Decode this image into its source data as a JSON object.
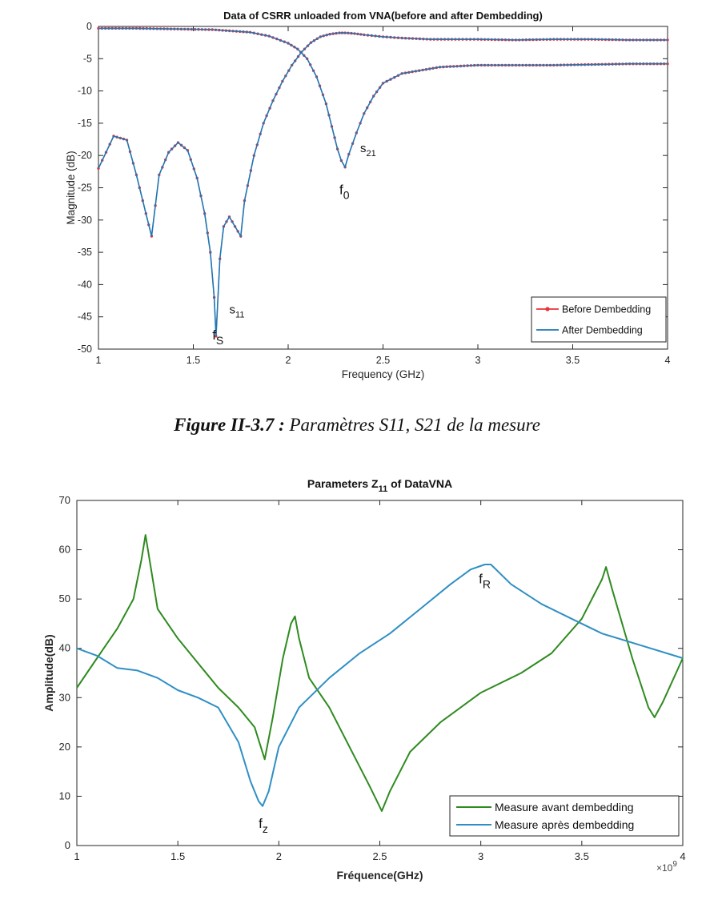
{
  "caption": {
    "label": "Figure II-3.7 :",
    "text": " Paramètres S11, S21 de la mesure"
  },
  "colors": {
    "s_before": "#e8323a",
    "s_after": "#1f77b4",
    "z_before": "#2e8b1f",
    "z_after": "#2f8fc4"
  },
  "chart_data": [
    {
      "type": "line",
      "title": "Data of CSRR unloaded from VNA(before and after Dembedding)",
      "xlabel": "Frequency (GHz)",
      "ylabel": "Magnitude (dB)",
      "xlim": [
        1,
        4
      ],
      "ylim": [
        -50,
        0
      ],
      "xticks": [
        1,
        1.5,
        2,
        2.5,
        3,
        3.5,
        4
      ],
      "xtick_labels": [
        "1",
        "1.5",
        "2",
        "2.5",
        "3",
        "3.5",
        "4"
      ],
      "yticks": [
        0,
        -5,
        -10,
        -15,
        -20,
        -25,
        -30,
        -35,
        -40,
        -45,
        -50
      ],
      "ytick_labels": [
        "0",
        "-5",
        "-10",
        "-15",
        "-20",
        "-25",
        "-30",
        "-35",
        "-40",
        "-45",
        "-50"
      ],
      "legend_position": "bottom-right",
      "series": [
        {
          "name": "Before Dembedding",
          "marker": "dot"
        },
        {
          "name": "After Dembedding"
        }
      ],
      "curves": {
        "S11": {
          "x": [
            1,
            1.08,
            1.15,
            1.2,
            1.25,
            1.28,
            1.32,
            1.37,
            1.42,
            1.47,
            1.52,
            1.56,
            1.59,
            1.61,
            1.62,
            1.64,
            1.66,
            1.69,
            1.72,
            1.75,
            1.77,
            1.82,
            1.87,
            1.92,
            1.97,
            2.02,
            2.07,
            2.12,
            2.17,
            2.22,
            2.27,
            2.3,
            2.35,
            2.4,
            2.5,
            2.6,
            2.75,
            2.9,
            3,
            3.2,
            3.4,
            3.6,
            3.8,
            4
          ],
          "y": [
            -22,
            -17,
            -17.6,
            -23,
            -29,
            -32.5,
            -23,
            -19.5,
            -18,
            -19.2,
            -23.5,
            -29,
            -35,
            -42,
            -48,
            -36,
            -31,
            -29.5,
            -31,
            -32.5,
            -27,
            -20,
            -15,
            -11.5,
            -8.5,
            -6,
            -4,
            -2.5,
            -1.6,
            -1.2,
            -1,
            -1,
            -1.1,
            -1.3,
            -1.6,
            -1.8,
            -2,
            -2,
            -2,
            -2.1,
            -2,
            -2,
            -2.1,
            -2.1
          ]
        },
        "S21": {
          "x": [
            1,
            1.2,
            1.4,
            1.6,
            1.8,
            1.9,
            2,
            2.05,
            2.1,
            2.15,
            2.2,
            2.23,
            2.26,
            2.28,
            2.3,
            2.32,
            2.36,
            2.4,
            2.45,
            2.5,
            2.6,
            2.8,
            3,
            3.2,
            3.4,
            3.6,
            3.8,
            4
          ],
          "y": [
            -0.3,
            -0.3,
            -0.4,
            -0.5,
            -0.9,
            -1.5,
            -2.6,
            -3.5,
            -5,
            -7.8,
            -12,
            -15.5,
            -19,
            -20.8,
            -21.8,
            -19.8,
            -16.5,
            -13.5,
            -10.8,
            -8.8,
            -7.3,
            -6.3,
            -6,
            -6,
            -6,
            -5.9,
            -5.8,
            -5.8
          ]
        }
      },
      "annotations": [
        {
          "text": "s",
          "sub": "21",
          "x": 2.38,
          "y": -19.5
        },
        {
          "text": "f",
          "sub": "0",
          "x": 2.27,
          "y": -26
        },
        {
          "text": "s",
          "sub": "11",
          "x": 1.69,
          "y": -44.5
        },
        {
          "text": "f",
          "sub": "S",
          "x": 1.6,
          "y": -48.5
        }
      ]
    },
    {
      "type": "line",
      "title": "Parameters Z",
      "title_sub": "11",
      "title_suffix": " of DataVNA",
      "xlabel": "Fréquence(GHz)",
      "ylabel": "Amplitude(dB)",
      "x_exponent_label": "×10",
      "x_exponent_power": "9",
      "xlim": [
        1,
        4
      ],
      "ylim": [
        0,
        70
      ],
      "xticks": [
        1,
        1.5,
        2,
        2.5,
        3,
        3.5,
        4
      ],
      "xtick_labels": [
        "1",
        "1.5",
        "2",
        "2.5",
        "3",
        "3.5",
        "4"
      ],
      "yticks": [
        0,
        10,
        20,
        30,
        40,
        50,
        60,
        70
      ],
      "ytick_labels": [
        "0",
        "10",
        "20",
        "30",
        "40",
        "50",
        "60",
        "70"
      ],
      "legend_position": "bottom-right",
      "series": [
        {
          "name": "Measure avant dembedding",
          "x": [
            1,
            1.1,
            1.2,
            1.28,
            1.32,
            1.34,
            1.36,
            1.4,
            1.5,
            1.6,
            1.7,
            1.8,
            1.88,
            1.93,
            1.97,
            2.02,
            2.06,
            2.08,
            2.1,
            2.15,
            2.25,
            2.35,
            2.45,
            2.51,
            2.55,
            2.65,
            2.8,
            3,
            3.2,
            3.35,
            3.5,
            3.6,
            3.62,
            3.65,
            3.75,
            3.83,
            3.86,
            3.9,
            4
          ],
          "y": [
            32,
            38,
            44,
            50,
            58,
            63,
            58,
            48,
            42,
            37,
            32,
            28,
            24,
            17.5,
            26,
            38,
            45,
            46.5,
            42,
            34,
            28,
            20,
            12,
            7,
            11,
            19,
            25,
            31,
            35,
            39,
            46,
            54,
            56.5,
            52,
            38,
            28,
            26,
            29,
            38
          ]
        },
        {
          "name": "Measure après dembedding",
          "x": [
            1,
            1.1,
            1.2,
            1.3,
            1.4,
            1.5,
            1.6,
            1.7,
            1.8,
            1.86,
            1.9,
            1.92,
            1.95,
            2,
            2.1,
            2.25,
            2.4,
            2.55,
            2.7,
            2.85,
            2.95,
            3.02,
            3.05,
            3.15,
            3.3,
            3.45,
            3.6,
            3.8,
            4
          ],
          "y": [
            40,
            38.5,
            36,
            35.5,
            34,
            31.5,
            30,
            28,
            21,
            13,
            9,
            8,
            11,
            20,
            28,
            34,
            39,
            43,
            48,
            53,
            56,
            57,
            57,
            53,
            49,
            46,
            43,
            40.5,
            38
          ]
        }
      ],
      "annotations": [
        {
          "text": "f",
          "sub": "R",
          "x": 2.99,
          "y": 53.2
        },
        {
          "text": "f",
          "sub": "z",
          "x": 1.9,
          "y": 3.6
        }
      ]
    }
  ]
}
